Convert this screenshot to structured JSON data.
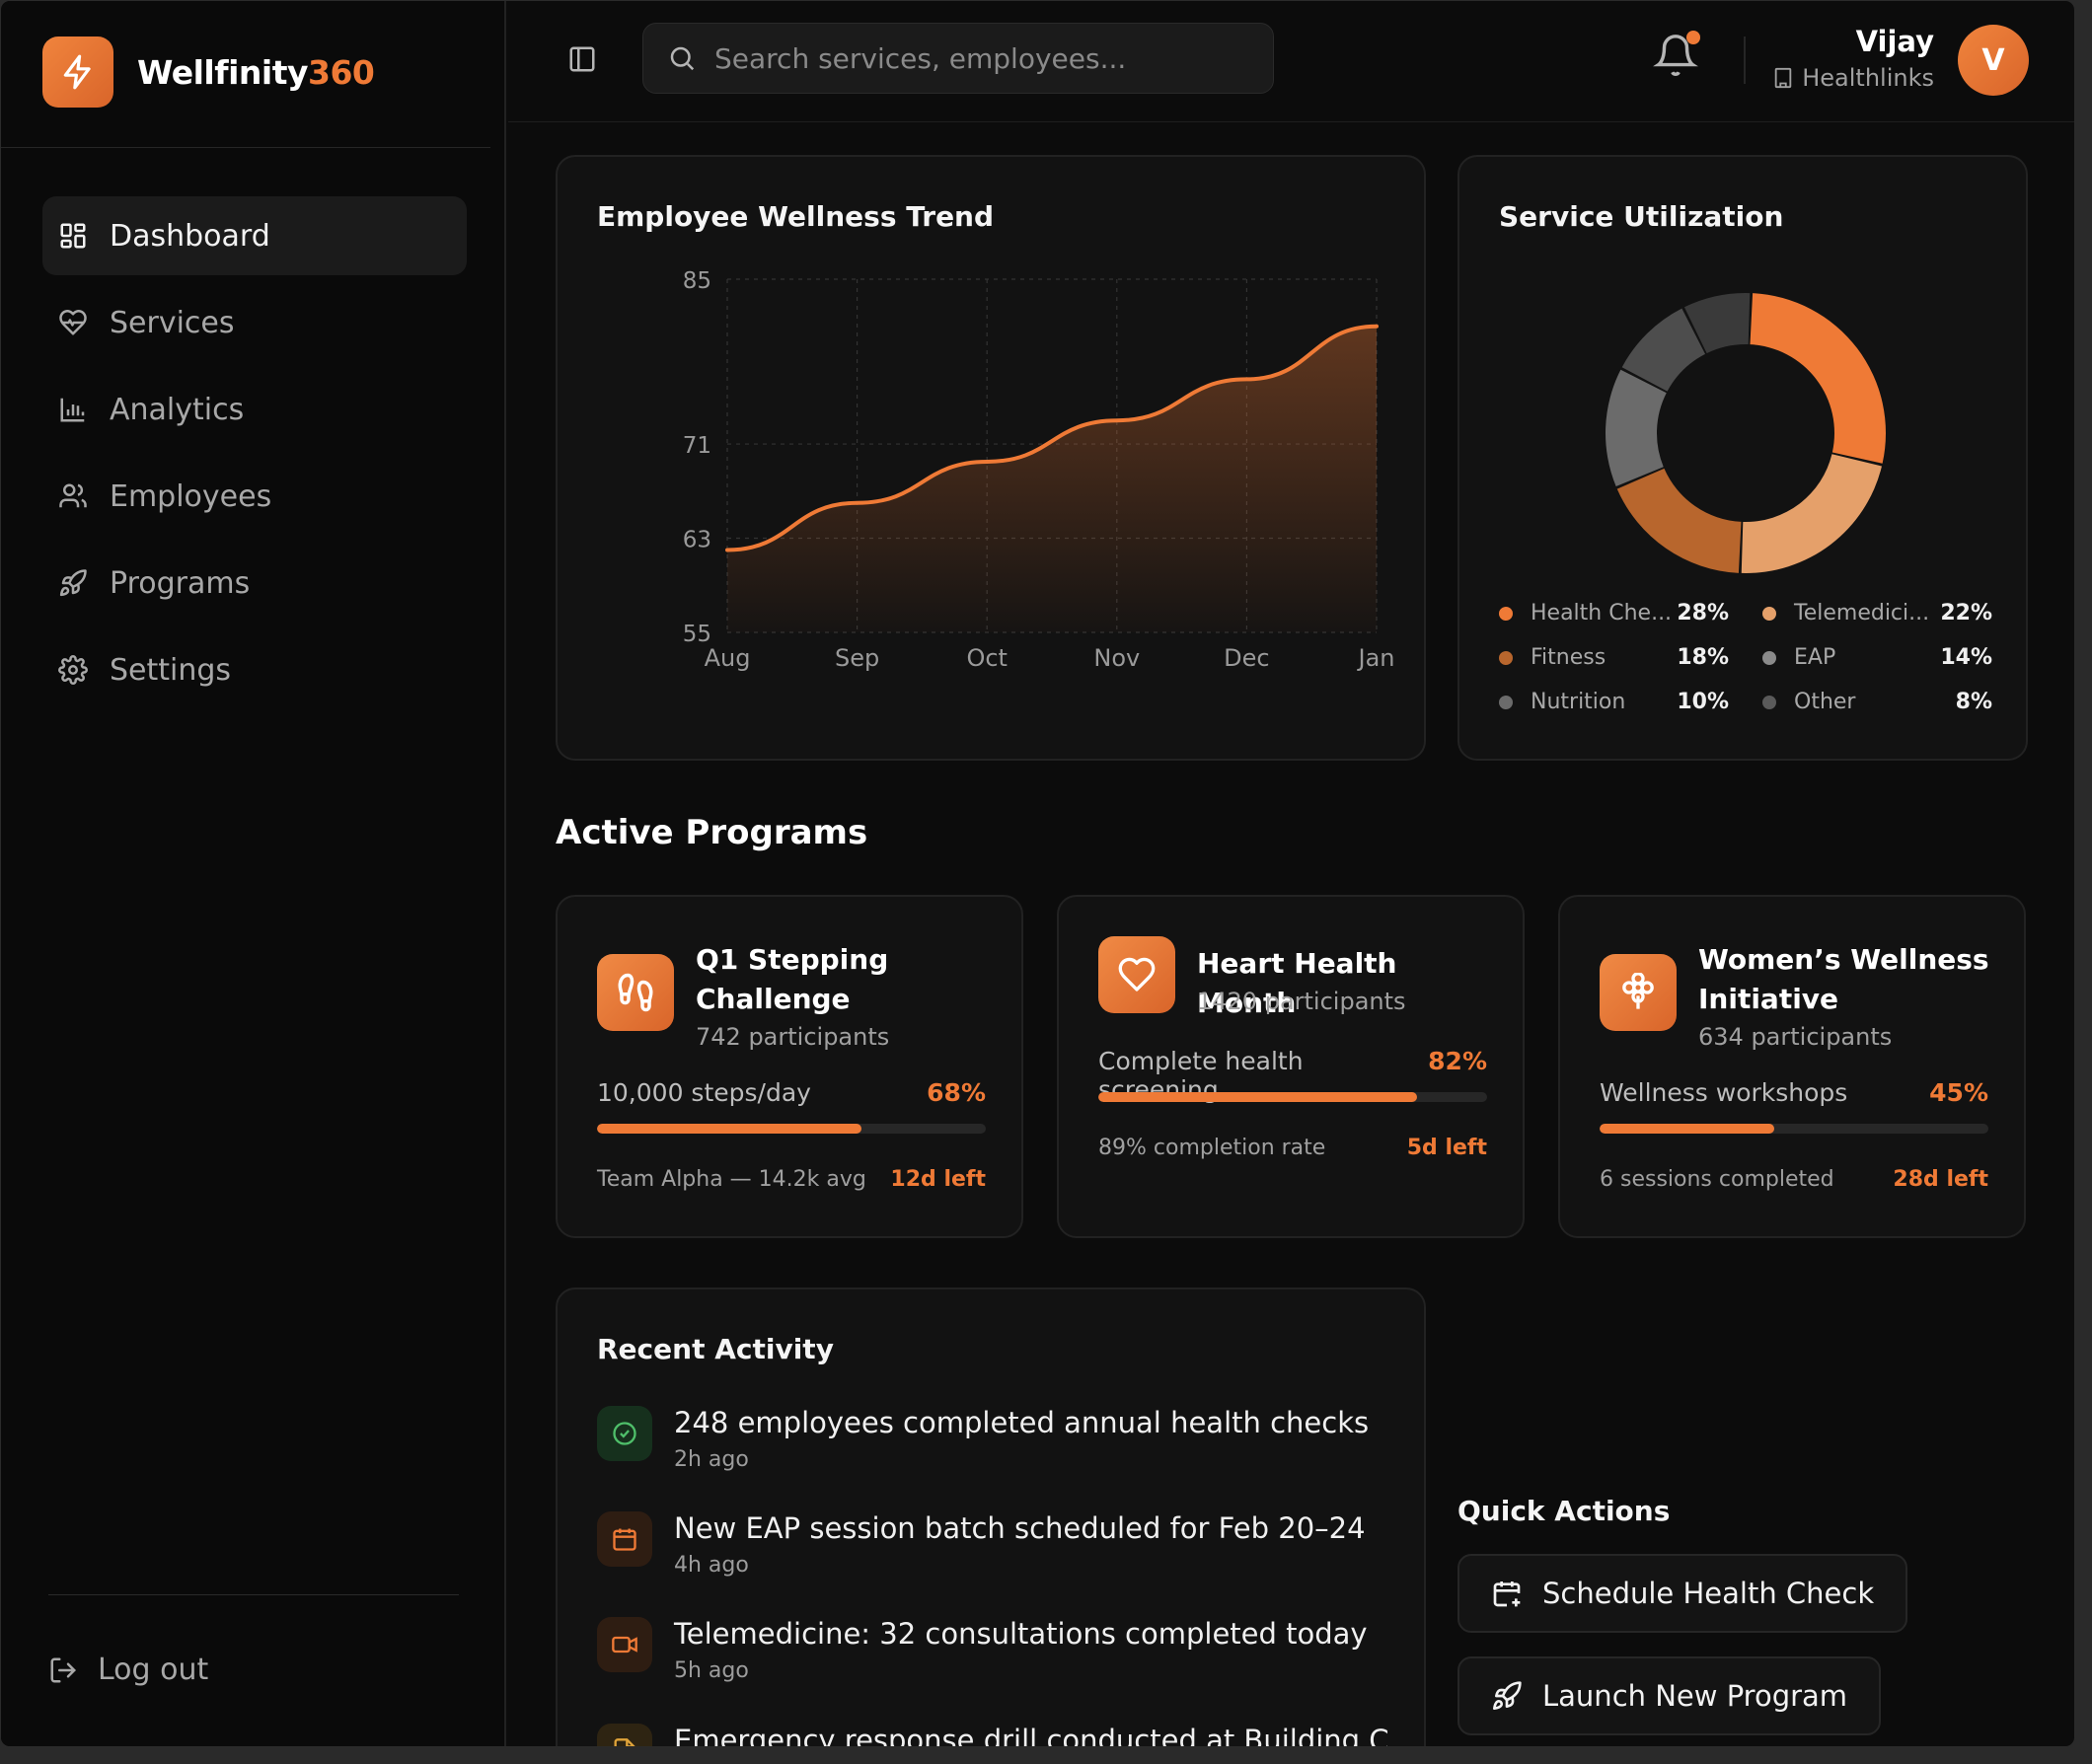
{
  "brand": {
    "name_main": "Wellfinity",
    "name_accent": "360"
  },
  "nav": {
    "items": [
      {
        "label": "Dashboard",
        "icon": "dashboard-grid-icon",
        "active": true
      },
      {
        "label": "Services",
        "icon": "heart-pulse-icon"
      },
      {
        "label": "Analytics",
        "icon": "bar-chart-icon"
      },
      {
        "label": "Employees",
        "icon": "users-icon"
      },
      {
        "label": "Programs",
        "icon": "rocket-icon"
      },
      {
        "label": "Settings",
        "icon": "gear-icon"
      }
    ],
    "logout_label": "Log out"
  },
  "topbar": {
    "search_placeholder": "Search services, employees...",
    "user_name": "Vijay",
    "user_org": "Healthlinks",
    "avatar_initial": "V"
  },
  "colors": {
    "accent": "#ef7a36",
    "background": "#0c0c0c",
    "card": "#121212"
  },
  "trend_card": {
    "title": "Employee Wellness Trend"
  },
  "chart_data": [
    {
      "type": "area",
      "title": "Employee Wellness Trend",
      "categories": [
        "Aug",
        "Sep",
        "Oct",
        "Nov",
        "Dec",
        "Jan"
      ],
      "values": [
        62,
        66,
        69.5,
        73,
        76.5,
        81
      ],
      "y_ticks": [
        55,
        63,
        71,
        85
      ],
      "ylim": [
        55,
        85
      ],
      "grid": true,
      "color": "#ef7a36"
    },
    {
      "type": "pie",
      "title": "Service Utilization",
      "labels": [
        "Health Checks",
        "Telemedicine",
        "Fitness",
        "EAP",
        "Nutrition",
        "Other"
      ],
      "values": [
        28,
        22,
        18,
        14,
        10,
        8
      ],
      "colors": [
        "#ef7a36",
        "#e5a06a",
        "#b8662d",
        "#6b6b6b",
        "#4d4d4d",
        "#3a3a3a"
      ],
      "donut": true
    }
  ],
  "util_card": {
    "title": "Service Utilization",
    "legend": [
      {
        "label": "Health Che...",
        "pct": "28%",
        "color": "#ef7a36"
      },
      {
        "label": "Telemedici...",
        "pct": "22%",
        "color": "#e5a06a"
      },
      {
        "label": "Fitness",
        "pct": "18%",
        "color": "#b8662d"
      },
      {
        "label": "EAP",
        "pct": "14%",
        "color": "#8a8a8a"
      },
      {
        "label": "Nutrition",
        "pct": "10%",
        "color": "#6b6b6b"
      },
      {
        "label": "Other",
        "pct": "8%",
        "color": "#5a5a5a"
      }
    ]
  },
  "programs": {
    "title": "Active Programs",
    "items": [
      {
        "title": "Q1 Stepping Challenge",
        "participants": "742 participants",
        "goal": "10,000 steps/day",
        "pct": "68%",
        "progress": 0.68,
        "note": "Team Alpha — 14.2k avg",
        "left": "12d left",
        "icon": "footprints-icon"
      },
      {
        "title": "Heart Health Month",
        "participants": "1420 participants",
        "goal": "Complete health screening",
        "pct": "82%",
        "progress": 0.82,
        "note": "89% completion rate",
        "left": "5d left",
        "icon": "heart-icon"
      },
      {
        "title": "Women’s Wellness Initiative",
        "participants": "634 participants",
        "goal": "Wellness workshops",
        "pct": "45%",
        "progress": 0.45,
        "note": "6 sessions completed",
        "left": "28d left",
        "icon": "flower-icon"
      }
    ]
  },
  "activity": {
    "title": "Recent Activity",
    "items": [
      {
        "text": "248 employees completed annual health checks",
        "time": "2h ago",
        "icon": "check-circle-icon"
      },
      {
        "text": "New EAP session batch scheduled for Feb 20–24",
        "time": "4h ago",
        "icon": "calendar-icon"
      },
      {
        "text": "Telemedicine: 32 consultations completed today",
        "time": "5h ago",
        "icon": "video-icon"
      },
      {
        "text": "Emergency response drill conducted at Building C",
        "time": "",
        "icon": "document-icon"
      }
    ]
  },
  "quick_actions": {
    "title": "Quick Actions",
    "buttons": [
      {
        "label": "Schedule Health Check",
        "icon": "calendar-plus-icon"
      },
      {
        "label": "Launch New Program",
        "icon": "rocket-icon"
      }
    ]
  }
}
